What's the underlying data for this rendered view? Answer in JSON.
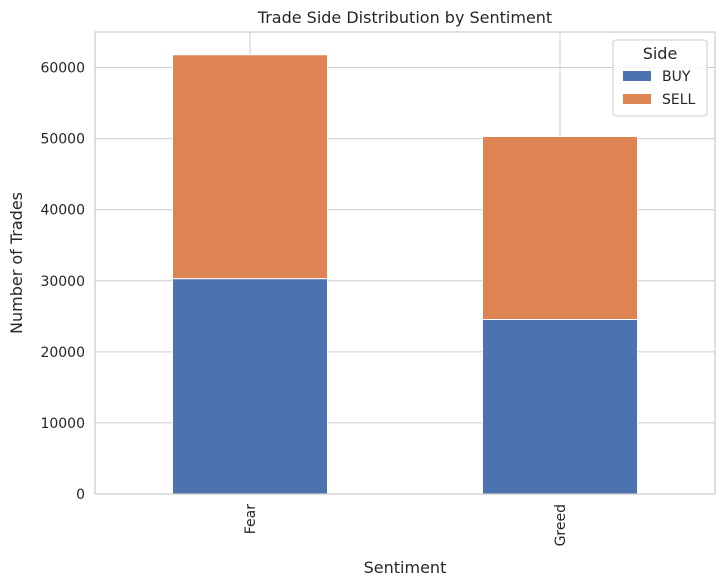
{
  "chart_data": {
    "type": "bar",
    "stacked": true,
    "title": "Trade Side Distribution by Sentiment",
    "xlabel": "Sentiment",
    "ylabel": "Number of Trades",
    "categories": [
      "Fear",
      "Greed"
    ],
    "series": [
      {
        "name": "BUY",
        "values": [
          30300,
          24550
        ],
        "color": "#4c72b0"
      },
      {
        "name": "SELL",
        "values": [
          31500,
          25750
        ],
        "color": "#dd8452"
      }
    ],
    "ylim": [
      0,
      65000
    ],
    "yticks": [
      0,
      10000,
      20000,
      30000,
      40000,
      50000,
      60000
    ],
    "grid": true,
    "legend": {
      "title": "Side",
      "position": "top-right"
    }
  }
}
